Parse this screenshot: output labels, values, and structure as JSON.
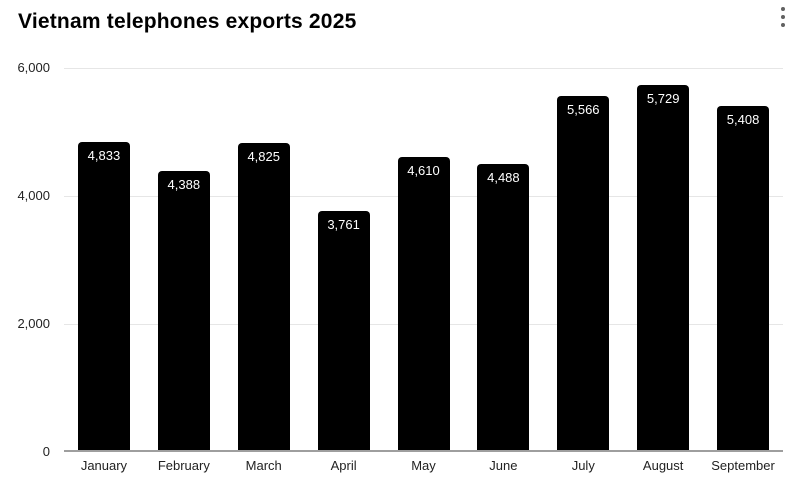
{
  "header": {
    "title": "Vietnam telephones exports 2025",
    "menu_icon": "kebab-vertical-menu"
  },
  "colors": {
    "bar": "#000000",
    "bar_value_label": "#ffffff",
    "gridline": "#e6e6e6",
    "axis_baseline": "#9e9e9e",
    "axis_text": "#222222",
    "background": "#ffffff"
  },
  "chart_data": {
    "type": "bar",
    "title": "Vietnam telephones exports 2025",
    "categories": [
      "January",
      "February",
      "March",
      "April",
      "May",
      "June",
      "July",
      "August",
      "September"
    ],
    "values": [
      4833,
      4388,
      4825,
      3761,
      4610,
      4488,
      5566,
      5729,
      5408
    ],
    "value_labels": [
      "4,833",
      "4,388",
      "4,825",
      "3,761",
      "4,610",
      "4,488",
      "5,566",
      "5,729",
      "5,408"
    ],
    "xlabel": "",
    "ylabel": "",
    "ylim": [
      0,
      6000
    ],
    "yticks": [
      0,
      2000,
      4000,
      6000
    ],
    "ytick_labels": [
      "0",
      "2,000",
      "4,000",
      "6,000"
    ],
    "grid": true,
    "legend": "none",
    "data_labels_position": "inside-top"
  }
}
